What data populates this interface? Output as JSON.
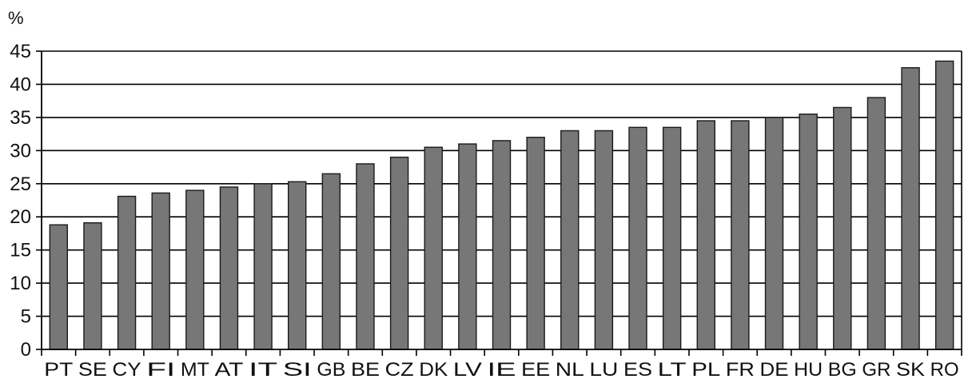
{
  "chart_data": {
    "type": "bar",
    "title": "",
    "xlabel": "",
    "ylabel": "%",
    "categories": [
      "PT",
      "SE",
      "CY",
      "FI",
      "MT",
      "AT",
      "IT",
      "SI",
      "GB",
      "BE",
      "CZ",
      "DK",
      "LV",
      "IE",
      "EE",
      "NL",
      "LU",
      "ES",
      "LT",
      "PL",
      "FR",
      "DE",
      "HU",
      "BG",
      "GR",
      "SK",
      "RO"
    ],
    "values": [
      18.8,
      19.1,
      23.1,
      23.6,
      24.0,
      24.5,
      25.0,
      25.3,
      26.5,
      28.0,
      29.0,
      30.5,
      31.0,
      31.5,
      32.0,
      33.0,
      33.0,
      33.5,
      33.5,
      34.5,
      34.5,
      35.0,
      35.5,
      36.5,
      38.0,
      42.5,
      43.5
    ],
    "ylim": [
      0,
      45
    ],
    "yticks": [
      0,
      5,
      10,
      15,
      20,
      25,
      30,
      35,
      40,
      45
    ],
    "grid": true,
    "legend": "none",
    "colors": {
      "bar_fill": "#777777",
      "bar_stroke": "#1a1a1a",
      "grid": "#000000",
      "text": "#111111"
    }
  }
}
